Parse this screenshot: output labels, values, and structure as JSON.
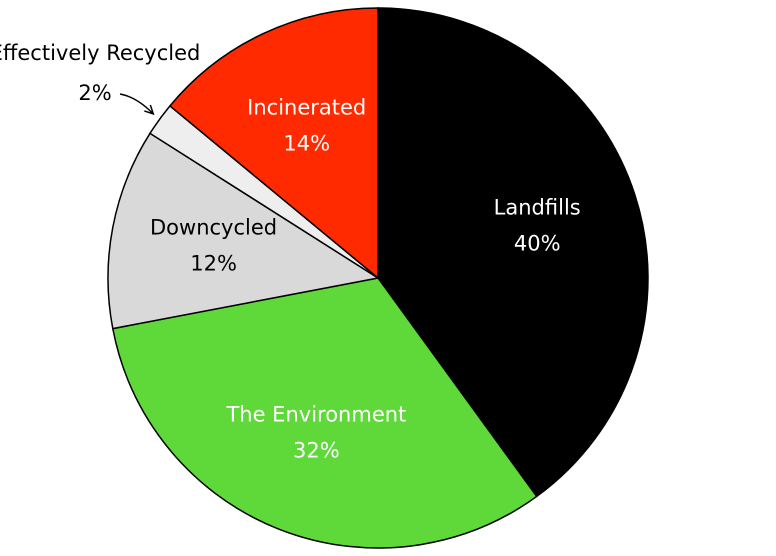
{
  "chart_data": {
    "type": "pie",
    "categories": [
      "Landfills",
      "The Environment",
      "Downcycled",
      "Effectively Recycled",
      "Incinerated"
    ],
    "values": [
      40,
      32,
      12,
      2,
      14
    ],
    "value_labels": [
      "40%",
      "32%",
      "12%",
      "2%",
      "14%"
    ],
    "colors": [
      "#000000",
      "#5fd83a",
      "#d9d9d9",
      "#eeeeee",
      "#ff2a00"
    ]
  }
}
